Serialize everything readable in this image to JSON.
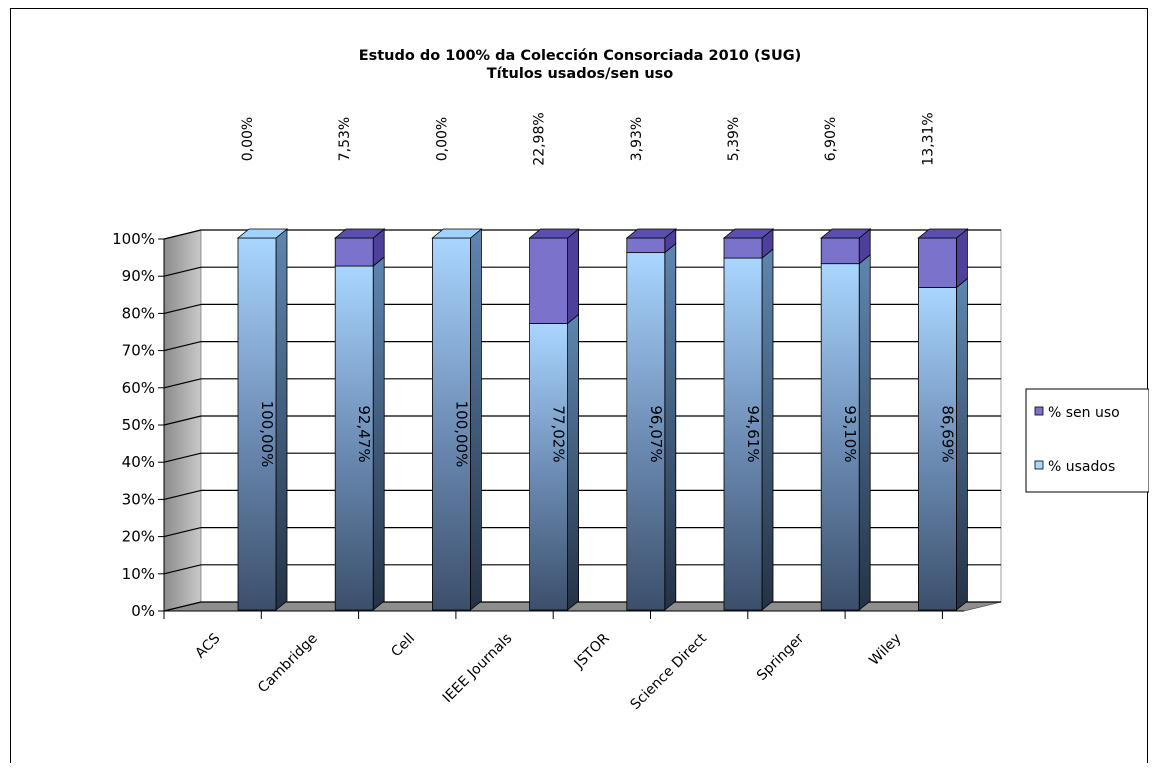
{
  "chart_data": {
    "type": "bar",
    "stacked": true,
    "three_d": true,
    "title": "Estudo do 100% da Colección Consorciada 2010 (SUG)",
    "subtitle": "Títulos usados/sen uso",
    "categories": [
      "ACS",
      "Cambridge",
      "Cell",
      "IEEE Journals",
      "JSTOR",
      "Science Direct",
      "Springer",
      "Wiley"
    ],
    "series": [
      {
        "name": "% usados",
        "values": [
          100.0,
          92.47,
          100.0,
          77.02,
          96.07,
          94.61,
          93.1,
          86.69
        ],
        "labels": [
          "100,00%",
          "92,47%",
          "100,00%",
          "77,02%",
          "96,07%",
          "94,61%",
          "93,10%",
          "86,69%"
        ],
        "color": "#A8D8FF"
      },
      {
        "name": "% sen uso",
        "values": [
          0.0,
          7.53,
          0.0,
          22.98,
          3.93,
          5.39,
          6.9,
          13.31
        ],
        "labels": [
          "0,00%",
          "7,53%",
          "0,00%",
          "22,98%",
          "3,93%",
          "5,39%",
          "6,90%",
          "13,31%"
        ],
        "color": "#7B72CC"
      }
    ],
    "y_ticks": [
      "0%",
      "10%",
      "20%",
      "30%",
      "40%",
      "50%",
      "60%",
      "70%",
      "80%",
      "90%",
      "100%"
    ],
    "ylim": [
      0,
      100
    ],
    "grid": true,
    "legend_position": "right"
  }
}
